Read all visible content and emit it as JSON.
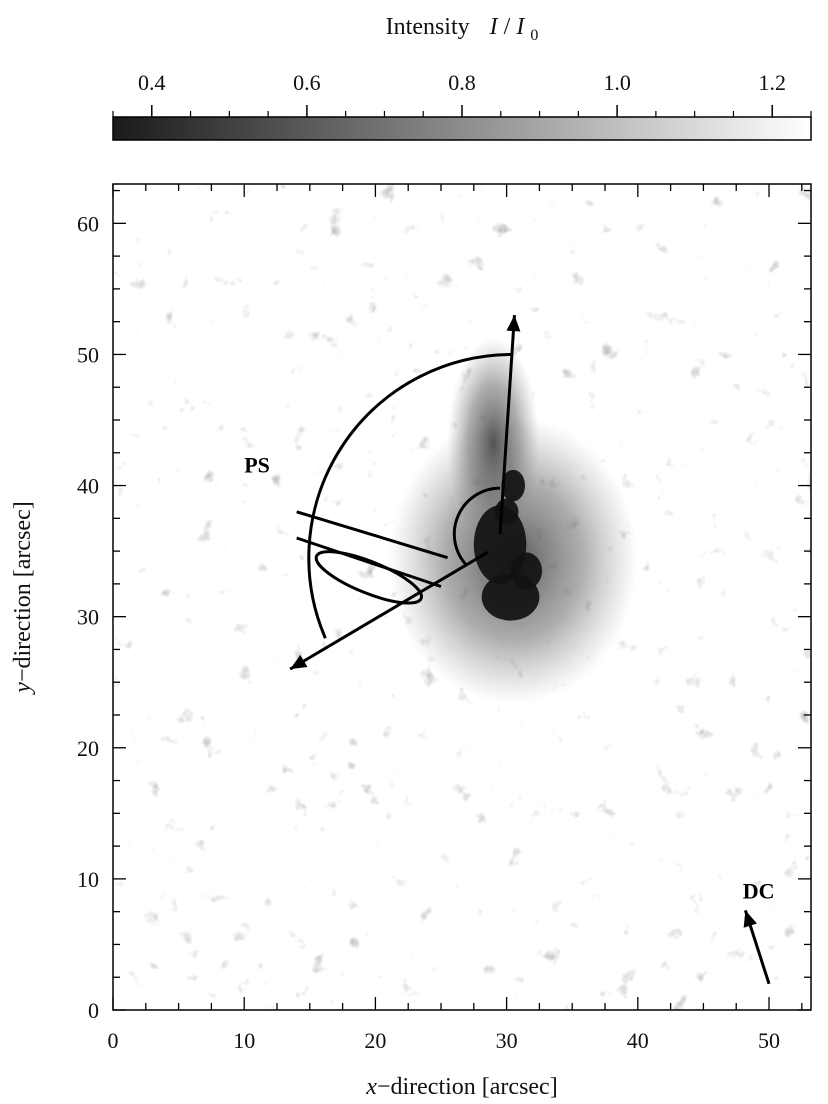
{
  "chart_data": {
    "type": "heatmap",
    "xlabel": {
      "italic": "x",
      "rest": "−direction   [arcsec]"
    },
    "ylabel": {
      "italic": "y",
      "rest": "−direction   [arcsec]"
    },
    "xlim": [
      0,
      53.2
    ],
    "ylim": [
      0,
      63
    ],
    "x_ticks": [
      0,
      10,
      20,
      30,
      40,
      50
    ],
    "y_ticks": [
      0,
      10,
      20,
      30,
      40,
      50,
      60
    ],
    "colorbar": {
      "title_text": "Intensity",
      "title_formula": {
        "I": "I",
        "slash": " / ",
        "I0": "I",
        "sub": "0"
      },
      "range": [
        0.35,
        1.25
      ],
      "ticks": [
        0.4,
        0.6,
        0.8,
        1.0,
        1.2
      ],
      "tick_labels": [
        "0.4",
        "0.6",
        "0.8",
        "1.0",
        "1.2"
      ],
      "colors": [
        "#1a1a1a",
        "#ffffff"
      ]
    },
    "spot_center": [
      29.5,
      36.3
    ],
    "arrow_tip_north": [
      30.6,
      53.0
    ],
    "arrow_tip_southwest": [
      13.5,
      26.0
    ],
    "annotations": [
      {
        "label": "PS",
        "x": 10.0,
        "y": 41.0
      },
      {
        "label": "DC",
        "x": 48.0,
        "y": 8.5
      }
    ],
    "dc_arrow": {
      "from": [
        50.0,
        2.0
      ],
      "to": [
        48.2,
        7.6
      ]
    },
    "sector_radius_arcsec": 15.5,
    "inner_radius_arcsec": 3.5,
    "grid": false
  }
}
